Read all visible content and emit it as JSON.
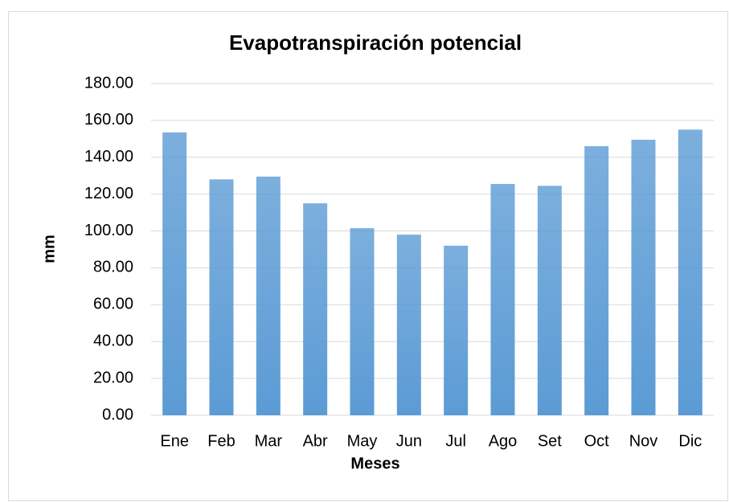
{
  "chart_data": {
    "type": "bar",
    "title": "Evapotranspiración potencial",
    "x_label": "Meses",
    "y_label": "mm",
    "categories": [
      "Ene",
      "Feb",
      "Mar",
      "Abr",
      "May",
      "Jun",
      "Jul",
      "Ago",
      "Set",
      "Oct",
      "Nov",
      "Dic"
    ],
    "values": [
      153.5,
      128,
      129.5,
      115,
      101.5,
      98,
      92,
      125.5,
      124.5,
      146,
      149.5,
      155
    ],
    "color": "#5b9bd5",
    "ylim": [
      0,
      180
    ],
    "yticks": [
      {
        "value": 0,
        "label": "0.00"
      },
      {
        "value": 20,
        "label": "20.00"
      },
      {
        "value": 40,
        "label": "40.00"
      },
      {
        "value": 60,
        "label": "60.00"
      },
      {
        "value": 80,
        "label": "80.00"
      },
      {
        "value": 100,
        "label": "100.00"
      },
      {
        "value": 120,
        "label": "120.00"
      },
      {
        "value": 140,
        "label": "140.00"
      },
      {
        "value": 160,
        "label": "160.00"
      },
      {
        "value": 180,
        "label": "180.00"
      }
    ],
    "grid": true
  }
}
